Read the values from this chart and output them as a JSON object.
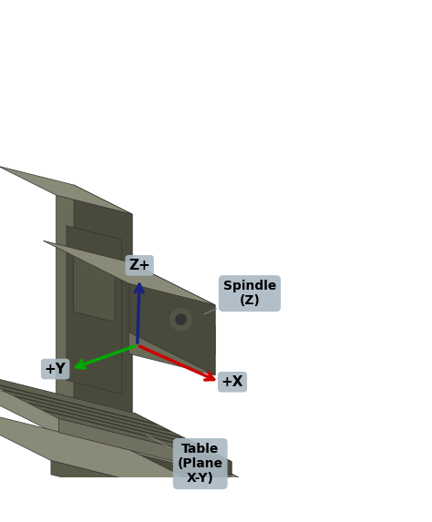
{
  "background_color": "#ffffff",
  "fig_width": 4.74,
  "fig_height": 5.73,
  "dpi": 100,
  "machine_color_body": "#6b6b5a",
  "machine_color_dark": "#4a4a3c",
  "machine_color_light": "#8a8a78",
  "machine_color_base": "#5a5a4a",
  "label_box_color": "#aab8c2",
  "axis_x_color": "#cc0000",
  "axis_y_color": "#00aa00",
  "axis_z_color": "#1a237e",
  "annotation_box_color": "#aab8c2",
  "spindle_label": "Spindle\n(Z)",
  "table_label": "Table\n(Plane\nX-Y)",
  "x_label": "+X",
  "y_label": "+Y",
  "z_label": "Z+"
}
